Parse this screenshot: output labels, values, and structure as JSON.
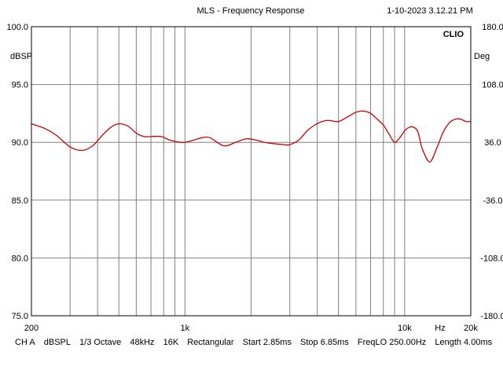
{
  "header": {
    "title": "MLS - Frequency Response",
    "timestamp": "1-10-2023 3.12.21 PM",
    "brand": "CLIO"
  },
  "footer": {
    "channel": "CH A",
    "unit": "dBSPL",
    "smoothing": "1/3 Octave",
    "sample_rate": "48kHz",
    "fft_size": "16K",
    "window": "Rectangular",
    "start": "Start 2.85ms",
    "stop": "Stop 6.85ms",
    "freq_lo": "FreqLO 250.00Hz",
    "length": "Length 4.00ms"
  },
  "colors": {
    "trace": "#cc0000",
    "grid": "#808080",
    "frame": "#000000"
  },
  "chart_data": {
    "type": "line",
    "title": "MLS - Frequency Response",
    "xlabel": "Hz",
    "ylabel": "dBSPL",
    "y2label": "Deg",
    "x_scale": "log",
    "xlim": [
      200,
      20000
    ],
    "ylim": [
      75,
      100
    ],
    "y2lim": [
      -180,
      180
    ],
    "x_tick_labels": [
      {
        "value": 200,
        "label": "200"
      },
      {
        "value": 1000,
        "label": "1k"
      },
      {
        "value": 10000,
        "label": "10k"
      },
      {
        "value": 20000,
        "label": "20k"
      }
    ],
    "y_tick_labels": [
      "100.0",
      "95.0",
      "90.0",
      "85.0",
      "80.0",
      "75.0"
    ],
    "y_ticks": [
      100,
      95,
      90,
      85,
      80,
      75
    ],
    "y2_tick_labels": [
      "180.0",
      "108.0",
      "36.0",
      "-36.0",
      "-108.0",
      "-180.0"
    ],
    "grid": true,
    "series": [
      {
        "x": [
          200,
          230,
          260,
          300,
          340,
          380,
          420,
          460,
          500,
          550,
          600,
          650,
          700,
          780,
          850,
          950,
          1000,
          1100,
          1200,
          1300,
          1500,
          1700,
          1900,
          2100,
          2300,
          2500,
          2800,
          3000,
          3300,
          3600,
          3900,
          4200,
          4500,
          5000,
          5500,
          6000,
          6500,
          7000,
          7500,
          8000,
          8500,
          9000,
          9500,
          10000,
          10500,
          11000,
          11500,
          12000,
          13000,
          14000,
          15000,
          16000,
          17000,
          18000,
          19000,
          20000
        ],
        "y": [
          91.6,
          91.2,
          90.6,
          89.6,
          89.3,
          89.7,
          90.6,
          91.3,
          91.6,
          91.4,
          90.8,
          90.5,
          90.5,
          90.5,
          90.2,
          90.0,
          90.0,
          90.2,
          90.4,
          90.4,
          89.7,
          90.0,
          90.3,
          90.2,
          90.0,
          89.9,
          89.8,
          89.8,
          90.2,
          91.0,
          91.5,
          91.8,
          91.9,
          91.8,
          92.2,
          92.6,
          92.7,
          92.5,
          92.0,
          91.5,
          90.7,
          90.0,
          90.4,
          91.0,
          91.3,
          91.3,
          90.9,
          89.5,
          88.3,
          89.5,
          90.9,
          91.7,
          92.0,
          92.0,
          91.8,
          91.8
        ]
      }
    ]
  }
}
